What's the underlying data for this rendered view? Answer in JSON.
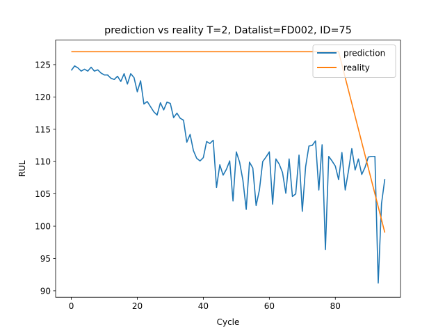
{
  "chart_data": {
    "type": "line",
    "title": "prediction vs reality T=2, Datalist=FD002, ID=75",
    "xlabel": "Cycle",
    "ylabel": "RUL",
    "xlim": [
      -4.75,
      99.75
    ],
    "ylim": [
      89.0,
      128.8
    ],
    "xticks": [
      0,
      20,
      40,
      60,
      80
    ],
    "yticks": [
      90,
      95,
      100,
      105,
      110,
      115,
      120,
      125
    ],
    "grid": false,
    "legend_position": "top-right",
    "series": [
      {
        "name": "prediction",
        "color": "#1f77b4",
        "x": [
          0,
          1,
          2,
          3,
          4,
          5,
          6,
          7,
          8,
          9,
          10,
          11,
          12,
          13,
          14,
          15,
          16,
          17,
          18,
          19,
          20,
          21,
          22,
          23,
          24,
          25,
          26,
          27,
          28,
          29,
          30,
          31,
          32,
          33,
          34,
          35,
          36,
          37,
          38,
          39,
          40,
          41,
          42,
          43,
          44,
          45,
          46,
          47,
          48,
          49,
          50,
          51,
          52,
          53,
          54,
          55,
          56,
          57,
          58,
          59,
          60,
          61,
          62,
          63,
          64,
          65,
          66,
          67,
          68,
          69,
          70,
          71,
          72,
          73,
          74,
          75,
          76,
          77,
          78,
          79,
          80,
          81,
          82,
          83,
          84,
          85,
          86,
          87,
          88,
          89,
          90,
          91,
          92,
          93,
          94,
          95
        ],
        "y": [
          124.1,
          124.8,
          124.5,
          124.0,
          124.3,
          124.0,
          124.6,
          124.0,
          124.2,
          123.7,
          123.4,
          123.4,
          122.9,
          122.7,
          123.2,
          122.4,
          123.6,
          122.0,
          123.6,
          123.0,
          120.8,
          122.5,
          118.9,
          119.3,
          118.5,
          117.7,
          117.2,
          119.1,
          118.0,
          119.2,
          119.0,
          116.8,
          117.5,
          116.7,
          116.4,
          113.0,
          114.2,
          111.7,
          110.5,
          110.1,
          110.6,
          113.1,
          112.8,
          113.3,
          106.0,
          109.5,
          107.9,
          108.8,
          110.1,
          103.9,
          111.5,
          109.9,
          107.1,
          102.6,
          109.9,
          109.0,
          103.2,
          105.6,
          110.0,
          110.7,
          111.5,
          103.4,
          110.4,
          109.6,
          108.3,
          105.1,
          110.4,
          104.6,
          105.0,
          111.0,
          102.3,
          109.2,
          112.4,
          112.5,
          113.2,
          105.6,
          112.6,
          96.4,
          110.8,
          110.1,
          109.3,
          107.2,
          111.4,
          105.6,
          108.6,
          112.0,
          108.7,
          110.4,
          108.0,
          109.1,
          110.7,
          110.8,
          110.8,
          91.2,
          103.5,
          107.3
        ]
      },
      {
        "name": "reality",
        "color": "#ff7f0e",
        "x": [
          0,
          81,
          95
        ],
        "y": [
          127,
          127,
          99
        ]
      }
    ]
  }
}
